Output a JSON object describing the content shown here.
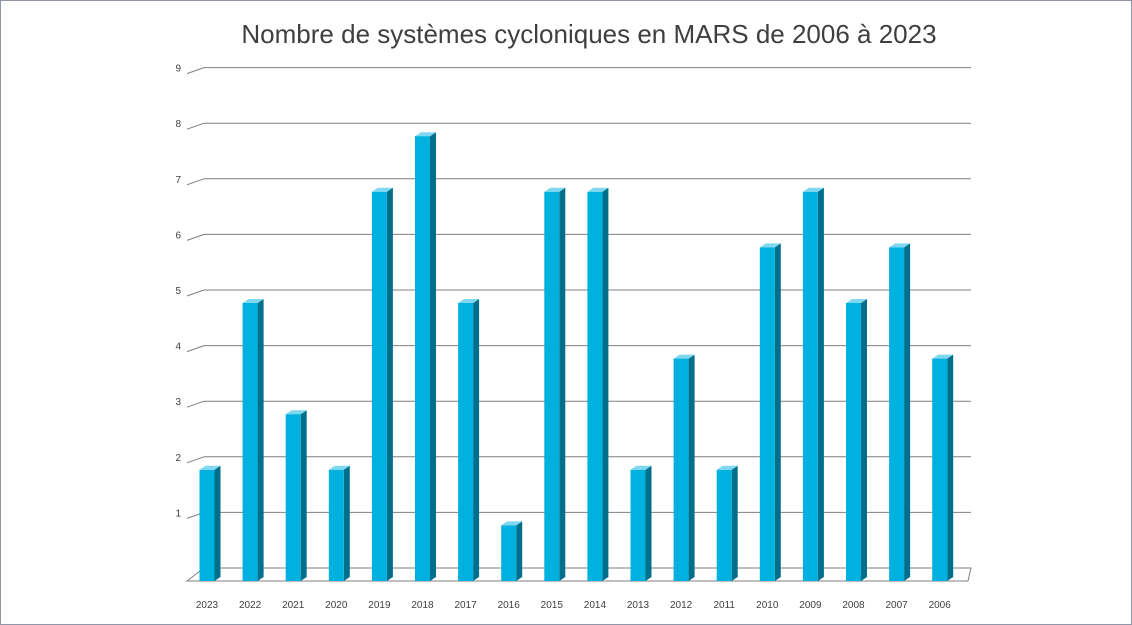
{
  "chart_data": {
    "type": "bar",
    "title": "Nombre de systèmes cycloniques en MARS de 2006 à 2023",
    "xlabel": "",
    "ylabel": "",
    "categories": [
      "2023",
      "2022",
      "2021",
      "2020",
      "2019",
      "2018",
      "2017",
      "2016",
      "2015",
      "2014",
      "2013",
      "2012",
      "2011",
      "2010",
      "2009",
      "2008",
      "2007",
      "2006"
    ],
    "values": [
      2,
      5,
      3,
      2,
      7,
      8,
      5,
      1,
      7,
      7,
      2,
      4,
      2,
      6,
      7,
      5,
      6,
      4
    ],
    "y_ticks": [
      "1",
      "2",
      "3",
      "4",
      "5",
      "6",
      "7",
      "8",
      "9"
    ],
    "ylim": [
      0,
      9
    ],
    "grid": true,
    "legend": "none",
    "bar_color": "#00b0de",
    "bar_side_color": "#006f8c",
    "bar_top_color": "#7fd8ef"
  }
}
